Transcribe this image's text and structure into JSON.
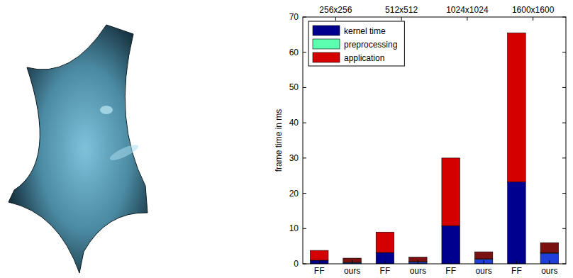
{
  "chart_data": {
    "type": "bar",
    "stacked": true,
    "grid": false,
    "legend": "upper left",
    "y_label": "frame time in ms",
    "groups": [
      "256x256",
      "512x512",
      "1024x1024",
      "1600x1600"
    ],
    "categories": [
      "FF",
      "ours",
      "FF",
      "ours",
      "FF",
      "ours",
      "FF",
      "ours"
    ],
    "ylim": [
      0,
      70
    ],
    "yticks": [
      0,
      10,
      20,
      30,
      40,
      50,
      60,
      70
    ],
    "series": [
      {
        "name": "kernel time",
        "color": "#00008f",
        "colors": [
          "#00008f",
          "#1f3fd8",
          "#00008f",
          "#1f3fd8",
          "#00008f",
          "#1f3fd8",
          "#00008f",
          "#1f3fd8"
        ],
        "values": [
          1.0,
          0.3,
          3.2,
          0.5,
          10.8,
          1.3,
          23.2,
          3.0
        ]
      },
      {
        "name": "preprocessing",
        "color": "#5cffb0",
        "colors": [
          "#5cffb0",
          "#5cffb0",
          "#5cffb0",
          "#5cffb0",
          "#5cffb0",
          "#5cffb0",
          "#5cffb0",
          "#5cffb0"
        ],
        "values": [
          0,
          0.1,
          0,
          0.1,
          0,
          0.1,
          0,
          0.1
        ]
      },
      {
        "name": "application",
        "color": "#d40000",
        "colors": [
          "#d40000",
          "#7a1010",
          "#d40000",
          "#7a1010",
          "#d40000",
          "#7a1010",
          "#d40000",
          "#7a1010"
        ],
        "values": [
          2.8,
          1.2,
          5.8,
          1.3,
          19.2,
          2.0,
          42.3,
          2.9
        ]
      }
    ]
  }
}
